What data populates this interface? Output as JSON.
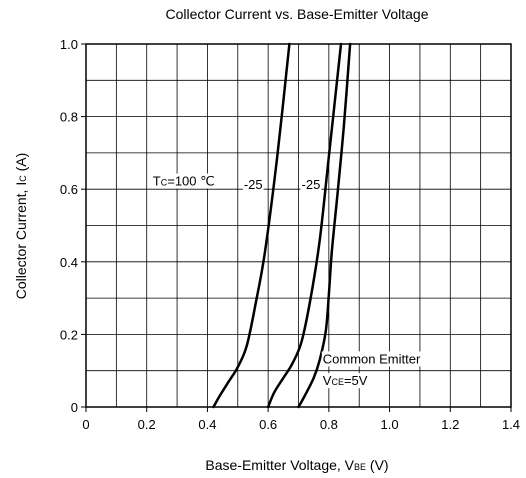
{
  "chart_data": {
    "type": "line",
    "title": "Collector Current vs. Base-Emitter Voltage",
    "xlabel": {
      "main": "Base-Emitter Voltage, V",
      "sub": "BE",
      "unit": " (V)"
    },
    "ylabel": {
      "main": "Collector Current, I",
      "sub": "C",
      "unit": " (A)"
    },
    "xlim": [
      0,
      1.4
    ],
    "ylim": [
      0,
      1.0
    ],
    "x_ticks": [
      "0",
      "0.2",
      "0.4",
      "0.6",
      "0.8",
      "1.0",
      "1.2",
      "1.4"
    ],
    "y_ticks": [
      "0",
      "0.2",
      "0.4",
      "0.6",
      "0.8",
      "1.0"
    ],
    "x_minor_step": 0.1,
    "y_minor_step": 0.1,
    "grid": true,
    "legend": "none",
    "series": [
      {
        "x": [
          0.42,
          0.44,
          0.47,
          0.5,
          0.53,
          0.56,
          0.59,
          0.63,
          0.67
        ],
        "y": [
          0.0,
          0.03,
          0.07,
          0.11,
          0.17,
          0.29,
          0.43,
          0.69,
          1.0
        ]
      },
      {
        "x": [
          0.6,
          0.62,
          0.65,
          0.68,
          0.71,
          0.74,
          0.77,
          0.8,
          0.84
        ],
        "y": [
          0.0,
          0.04,
          0.08,
          0.12,
          0.18,
          0.3,
          0.46,
          0.69,
          1.0
        ]
      },
      {
        "x": [
          0.7,
          0.72,
          0.75,
          0.77,
          0.79,
          0.8,
          0.81,
          0.83,
          0.85,
          0.87
        ],
        "y": [
          0.0,
          0.03,
          0.08,
          0.13,
          0.21,
          0.31,
          0.43,
          0.6,
          0.78,
          1.0
        ]
      }
    ],
    "annotations": [
      {
        "x": 0.22,
        "y": 0.61,
        "pre": "T",
        "sub": "C",
        "post": "=100 ℃"
      },
      {
        "x": 0.52,
        "y": 0.6,
        "pre": "-25",
        "sub": "",
        "post": ""
      },
      {
        "x": 0.71,
        "y": 0.6,
        "pre": "-25",
        "sub": "",
        "post": ""
      },
      {
        "x": 0.78,
        "y": 0.12,
        "pre": "Common Emitter",
        "sub": "",
        "post": ""
      },
      {
        "x": 0.78,
        "y": 0.06,
        "pre": "V",
        "sub": "CE",
        "post": "=5V"
      }
    ]
  }
}
